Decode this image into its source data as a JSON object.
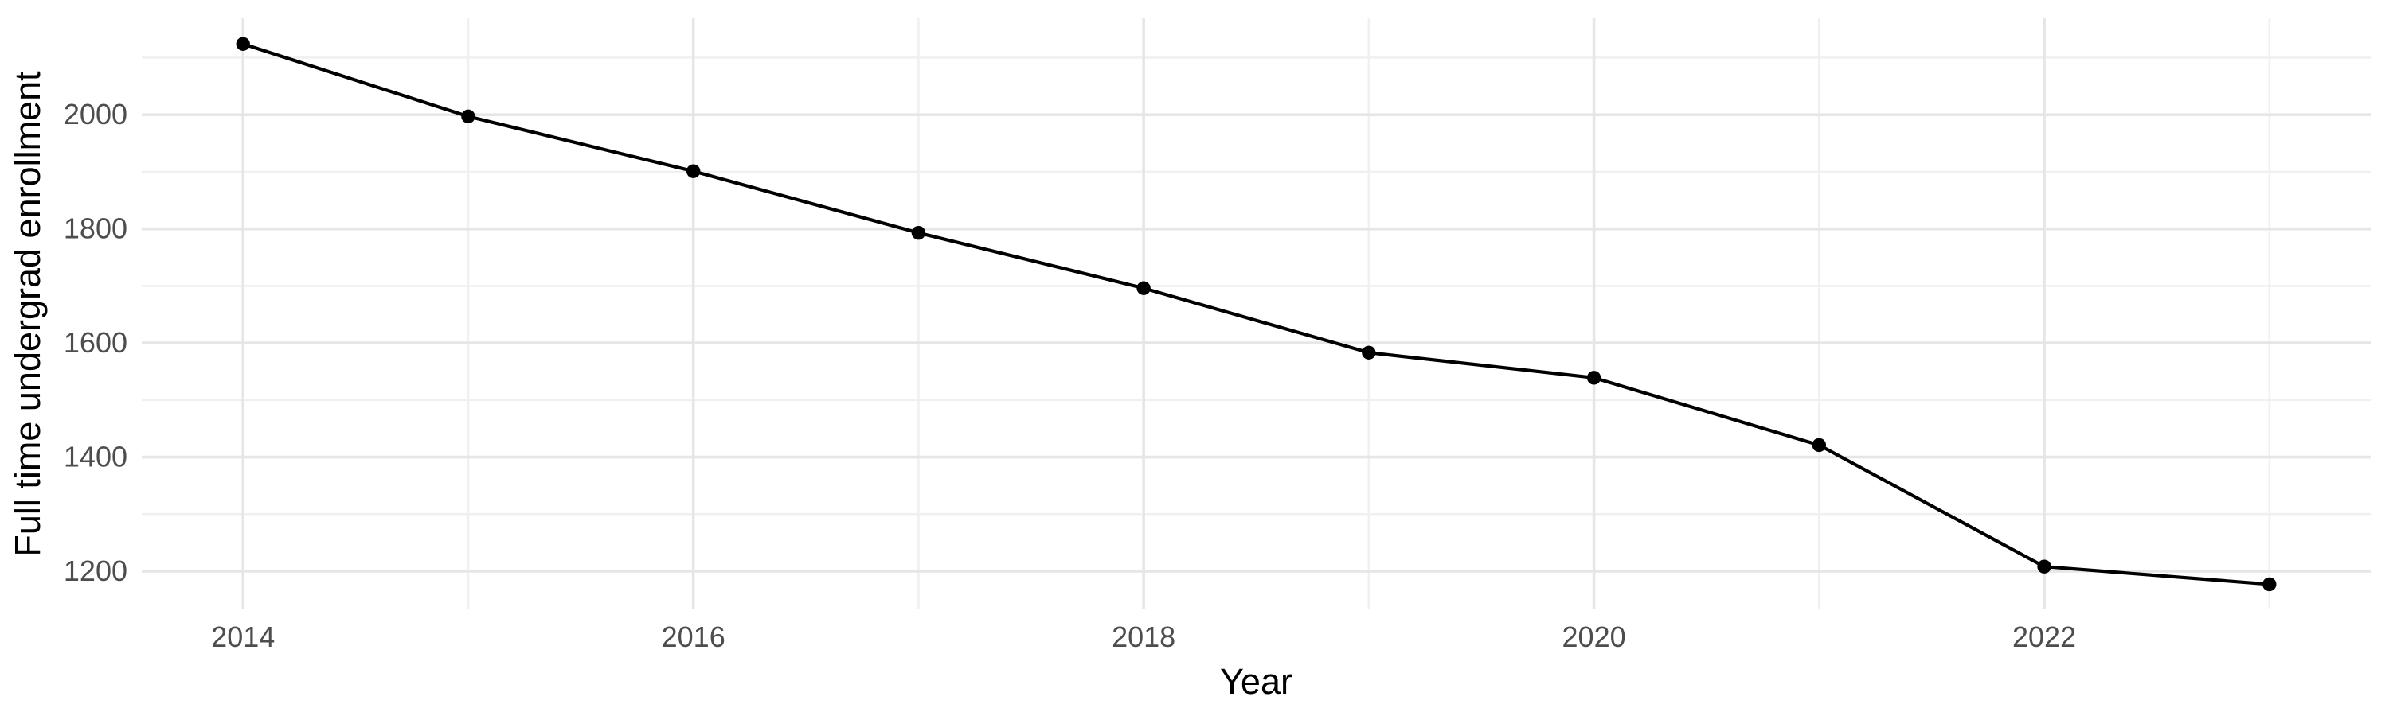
{
  "figure": {
    "background_color": "#ffffff",
    "kind": "ggplot-minimal-line-chart"
  },
  "chart_data": {
    "type": "line",
    "title": "",
    "xlabel": "Year",
    "ylabel": "Full time undergrad enrollment",
    "x": [
      2014,
      2015,
      2016,
      2017,
      2018,
      2019,
      2020,
      2021,
      2022,
      2023
    ],
    "series": [
      {
        "name": "Full time undergrad enrollment",
        "values": [
          2124,
          1997,
          1901,
          1793,
          1696,
          1583,
          1539,
          1421,
          1208,
          1177
        ]
      }
    ],
    "x_tick_labels": [
      "2014",
      "2016",
      "2018",
      "2020",
      "2022"
    ],
    "x_major_ticks": [
      2014,
      2016,
      2018,
      2020,
      2022
    ],
    "x_minor_gridlines": [
      2015,
      2017,
      2019,
      2021,
      2023
    ],
    "y_tick_labels": [
      "1200",
      "1400",
      "1600",
      "1800",
      "2000"
    ],
    "y_major_ticks": [
      1200,
      1400,
      1600,
      1800,
      2000
    ],
    "y_minor_gridlines": [
      1300,
      1500,
      1700,
      1900,
      2100
    ],
    "xlim": [
      2013.55,
      2023.45
    ],
    "ylim": [
      1133,
      2169
    ],
    "grid": "major-and-minor",
    "legend_position": "none",
    "markers": "filled-circle",
    "colors": {
      "line": "#000000",
      "point": "#000000",
      "grid_major": "#e6e6e6",
      "grid_minor": "#f0f0f0",
      "tick_text": "#4d4d4d",
      "axis_title_text": "#000000"
    }
  }
}
